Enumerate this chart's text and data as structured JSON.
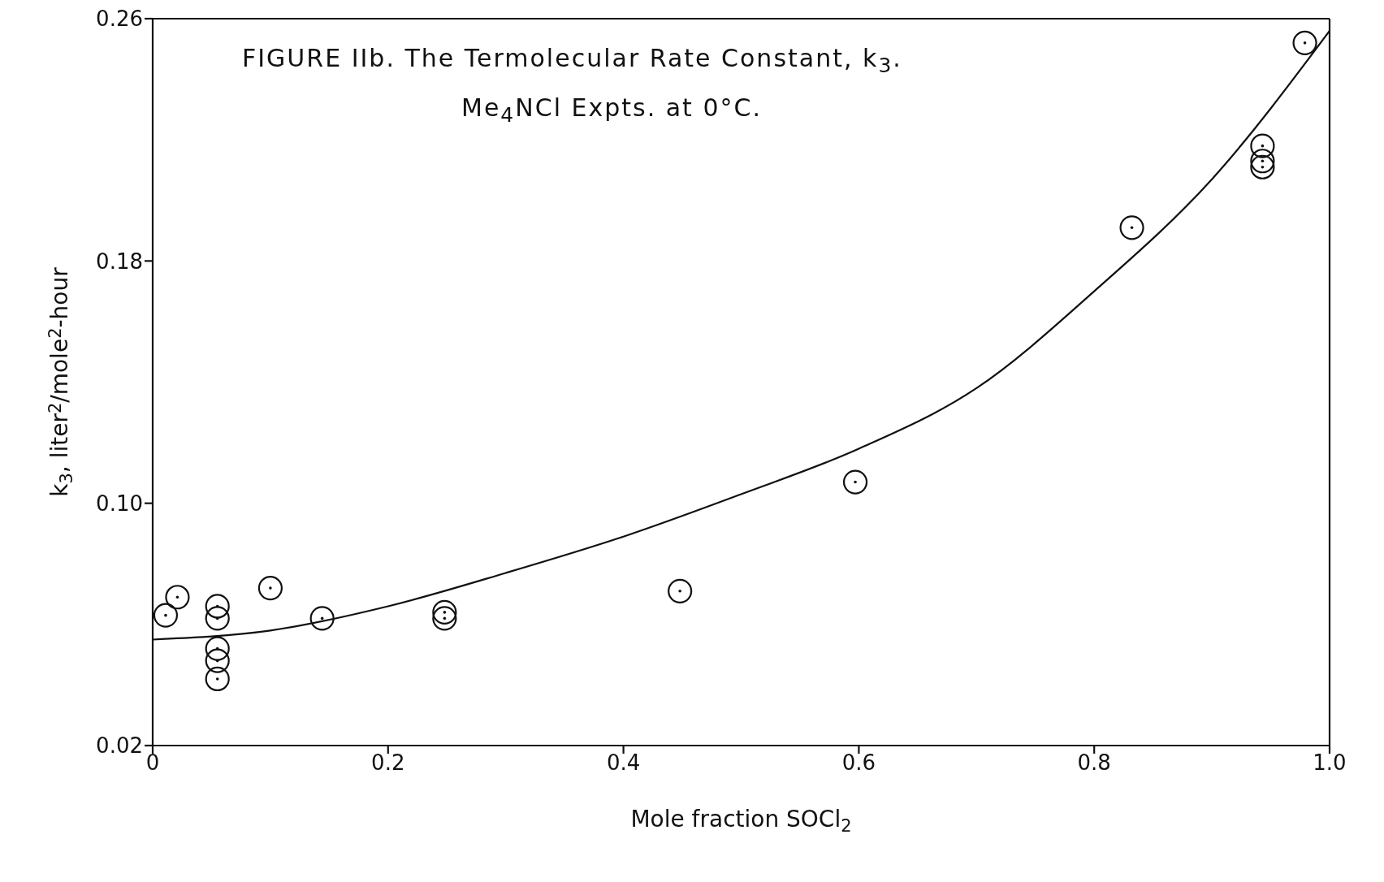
{
  "chart_data": {
    "type": "scatter",
    "title": "FIGURE IIb. The Termolecular Rate Constant, k$_{3}$.",
    "subtitle": "Me$_{4}$NCl Expts. at 0°C.",
    "xlabel": "Mole fraction SOCl$_{2}$",
    "ylabel": "k$_{3}$, liter$^{2}$/mole$^{2}$-hour",
    "xlim": [
      0,
      1.0
    ],
    "xticks": [
      0,
      0.2,
      0.4,
      0.6,
      0.8,
      {
        "value": 1.0,
        "label": "1.0"
      }
    ],
    "ylim": [
      0.02,
      0.26
    ],
    "yticks": [
      0.02,
      {
        "value": 0.1,
        "label": "0.10"
      },
      0.18,
      0.26
    ],
    "marker": "circle",
    "series": [
      {
        "color": "#111111",
        "x": [
          0.011,
          0.021,
          0.055,
          0.055,
          0.055,
          0.055,
          0.055,
          0.1,
          0.144,
          0.248,
          0.248,
          0.448,
          0.597,
          0.832,
          0.943,
          0.943,
          0.943,
          0.979
        ],
        "values": [
          0.063,
          0.069,
          0.066,
          0.062,
          0.052,
          0.048,
          0.042,
          0.072,
          0.062,
          0.064,
          0.062,
          0.071,
          0.107,
          0.191,
          0.218,
          0.213,
          0.211,
          0.252
        ]
      },
      {
        "type": "line",
        "color": "#111111",
        "marker": "none",
        "line_style": "solid",
        "x": [
          0,
          0.1,
          0.2,
          0.3,
          0.4,
          0.5,
          0.6,
          0.7,
          0.8,
          0.9,
          1.0
        ],
        "values": [
          0.055,
          0.058,
          0.066,
          0.077,
          0.089,
          0.103,
          0.118,
          0.138,
          0.17,
          0.207,
          0.256
        ]
      }
    ]
  }
}
